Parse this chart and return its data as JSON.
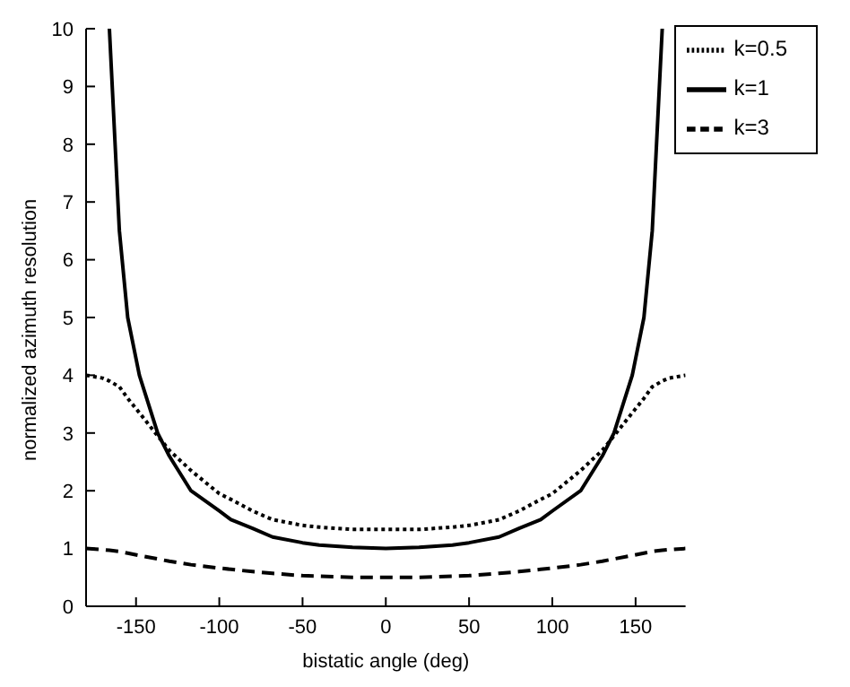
{
  "chart_data": {
    "type": "line",
    "xlabel": "bistatic angle (deg)",
    "ylabel": "normalized azimuth resolution",
    "xlim": [
      -180,
      180
    ],
    "ylim": [
      0,
      10
    ],
    "xticks": [
      -150,
      -100,
      -50,
      0,
      50,
      100,
      150
    ],
    "yticks": [
      0,
      1,
      2,
      3,
      4,
      5,
      6,
      7,
      8,
      9,
      10
    ],
    "grid": false,
    "legend": "top right",
    "marker": "none",
    "x": [
      -180,
      -170,
      -166,
      -160,
      -155,
      -148,
      -137,
      -130,
      -117,
      -100,
      -93,
      -80,
      -68,
      -50,
      -40,
      -20,
      0,
      20,
      40,
      50,
      68,
      80,
      93,
      100,
      117,
      130,
      137,
      148,
      155,
      160,
      166,
      170,
      180
    ],
    "series": [
      {
        "name": "k=0.5",
        "color": "#000000",
        "line_style": "dotted",
        "values": [
          4,
          3.95,
          3.9,
          3.8,
          3.6,
          3.35,
          2.95,
          2.7,
          2.35,
          1.95,
          1.85,
          1.65,
          1.5,
          1.4,
          1.37,
          1.33,
          1.33,
          1.33,
          1.37,
          1.4,
          1.5,
          1.65,
          1.85,
          1.95,
          2.35,
          2.7,
          2.95,
          3.35,
          3.6,
          3.8,
          3.9,
          3.95,
          4
        ]
      },
      {
        "name": "k=1",
        "color": "#000000",
        "line_style": "solid",
        "values": [
          null,
          null,
          10,
          6.5,
          5,
          4,
          3,
          2.6,
          2,
          1.65,
          1.5,
          1.35,
          1.2,
          1.1,
          1.06,
          1.02,
          1,
          1.02,
          1.06,
          1.1,
          1.2,
          1.35,
          1.5,
          1.65,
          2,
          2.6,
          3,
          4,
          5,
          6.5,
          10,
          null,
          null
        ]
      },
      {
        "name": "k=3",
        "color": "#000000",
        "line_style": "dashed",
        "values": [
          1,
          0.98,
          0.97,
          0.95,
          0.92,
          0.88,
          0.82,
          0.78,
          0.72,
          0.66,
          0.64,
          0.6,
          0.57,
          0.53,
          0.52,
          0.5,
          0.5,
          0.5,
          0.52,
          0.53,
          0.57,
          0.6,
          0.64,
          0.66,
          0.72,
          0.78,
          0.82,
          0.88,
          0.92,
          0.95,
          0.97,
          0.98,
          1
        ]
      }
    ]
  }
}
